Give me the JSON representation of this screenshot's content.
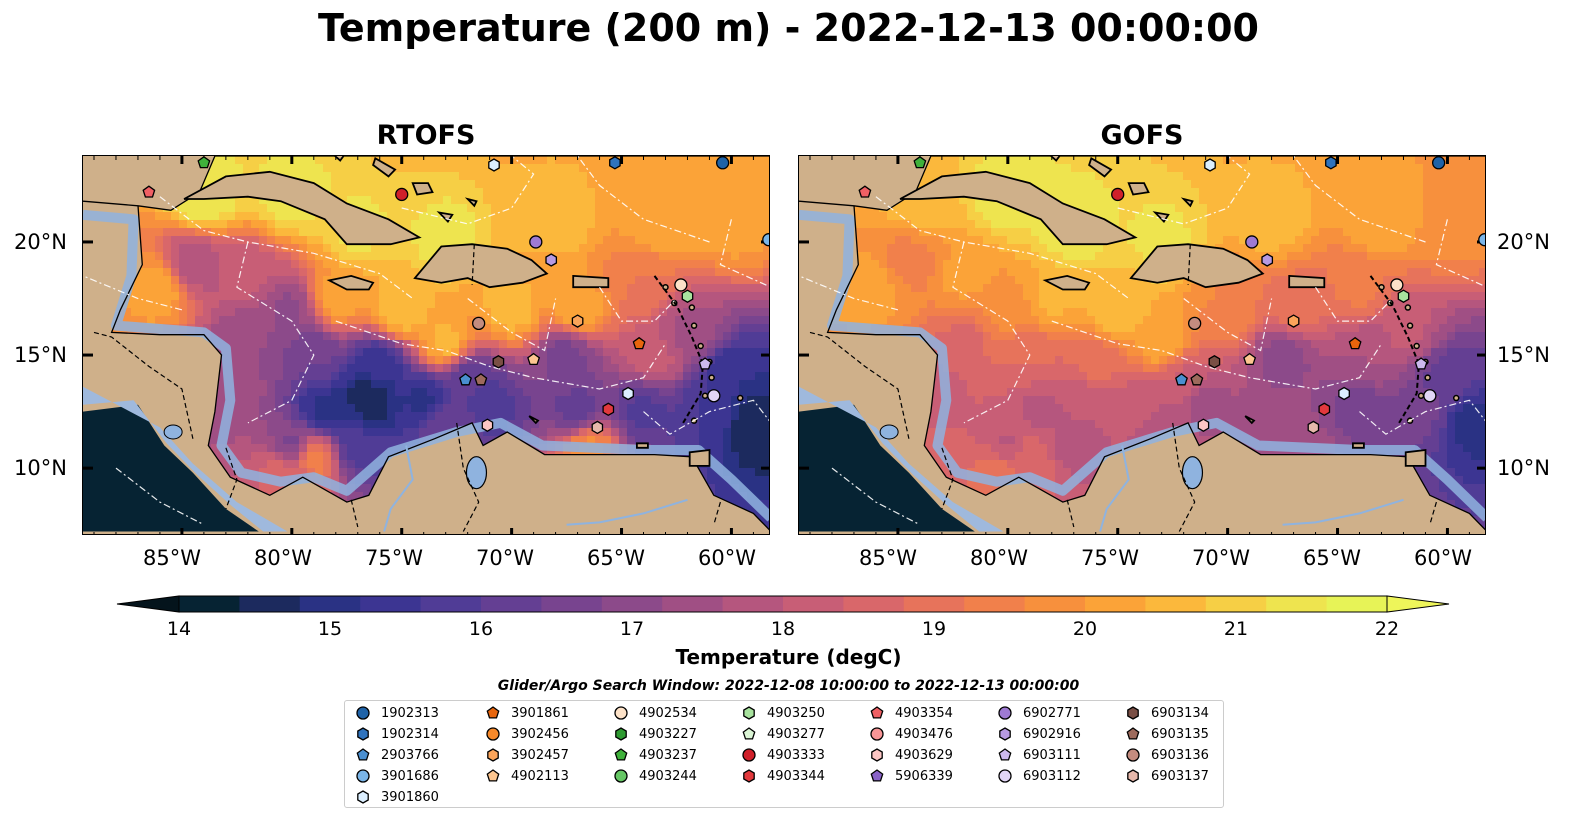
{
  "title": "Temperature (200 m) - 2022-12-13 00:00:00",
  "panels": [
    {
      "title": "RTOFS"
    },
    {
      "title": "GOFS"
    }
  ],
  "lat_labels": [
    "20°N",
    "15°N",
    "10°N"
  ],
  "lon_labels": [
    "85°W",
    "80°W",
    "75°W",
    "70°W",
    "65°W",
    "60°W"
  ],
  "colorbar": {
    "label": "Temperature (degC)",
    "ticks": [
      "14",
      "15",
      "16",
      "17",
      "18",
      "19",
      "20",
      "21",
      "22"
    ],
    "colors": [
      "#062333",
      "#1c2a5e",
      "#2a3284",
      "#3c3592",
      "#503c96",
      "#643f93",
      "#78448f",
      "#8c4a8a",
      "#a04f84",
      "#b5567e",
      "#c85e76",
      "#d9676a",
      "#e7735b",
      "#f1804b",
      "#f7903d",
      "#fba338",
      "#fbb83c",
      "#f6cf45",
      "#eee44f",
      "#e7f357"
    ],
    "range": [
      14,
      22
    ]
  },
  "legend": {
    "title": "Glider/Argo Search Window: 2022-12-08 10:00:00 to 2022-12-13 00:00:00",
    "items": [
      {
        "label": "1902313",
        "marker": "circle",
        "color": "#1f63a8"
      },
      {
        "label": "1902314",
        "marker": "hexagon",
        "color": "#2f73bd"
      },
      {
        "label": "2903766",
        "marker": "pentagon",
        "color": "#4a8fd0"
      },
      {
        "label": "3901686",
        "marker": "circle",
        "color": "#7ab5e8"
      },
      {
        "label": "3901860",
        "marker": "hexagon",
        "color": "#dcefff"
      },
      {
        "label": "3901861",
        "marker": "pentagon",
        "color": "#e8650c"
      },
      {
        "label": "3902456",
        "marker": "circle",
        "color": "#f7892a"
      },
      {
        "label": "3902457",
        "marker": "hexagon",
        "color": "#fba45a"
      },
      {
        "label": "4902113",
        "marker": "pentagon",
        "color": "#fdc690"
      },
      {
        "label": "4902534",
        "marker": "circle",
        "color": "#fde2c8"
      },
      {
        "label": "4903227",
        "marker": "hexagon",
        "color": "#2e9a31"
      },
      {
        "label": "4903237",
        "marker": "pentagon",
        "color": "#3fb13b"
      },
      {
        "label": "4903244",
        "marker": "circle",
        "color": "#66c765"
      },
      {
        "label": "4903250",
        "marker": "hexagon",
        "color": "#a8e39e"
      },
      {
        "label": "4903277",
        "marker": "pentagon",
        "color": "#dbf5d5"
      },
      {
        "label": "4903333",
        "marker": "circle",
        "color": "#d0202a"
      },
      {
        "label": "4903344",
        "marker": "hexagon",
        "color": "#e2393d"
      },
      {
        "label": "4903354",
        "marker": "pentagon",
        "color": "#f06064"
      },
      {
        "label": "4903476",
        "marker": "circle",
        "color": "#f79596"
      },
      {
        "label": "4903629",
        "marker": "hexagon",
        "color": "#fcc6c4"
      },
      {
        "label": "5906339",
        "marker": "pentagon",
        "color": "#8a63c8"
      },
      {
        "label": "6902771",
        "marker": "circle",
        "color": "#9f7ad3"
      },
      {
        "label": "6902916",
        "marker": "hexagon",
        "color": "#b79ae2"
      },
      {
        "label": "6903111",
        "marker": "pentagon",
        "color": "#cdb9ee"
      },
      {
        "label": "6903112",
        "marker": "circle",
        "color": "#e2d6f6"
      },
      {
        "label": "6903134",
        "marker": "hexagon",
        "color": "#7a4f45"
      },
      {
        "label": "6903135",
        "marker": "pentagon",
        "color": "#9d6a5c"
      },
      {
        "label": "6903136",
        "marker": "circle",
        "color": "#c48c7f"
      },
      {
        "label": "6903137",
        "marker": "hexagon",
        "color": "#e7b8ab"
      }
    ]
  }
}
